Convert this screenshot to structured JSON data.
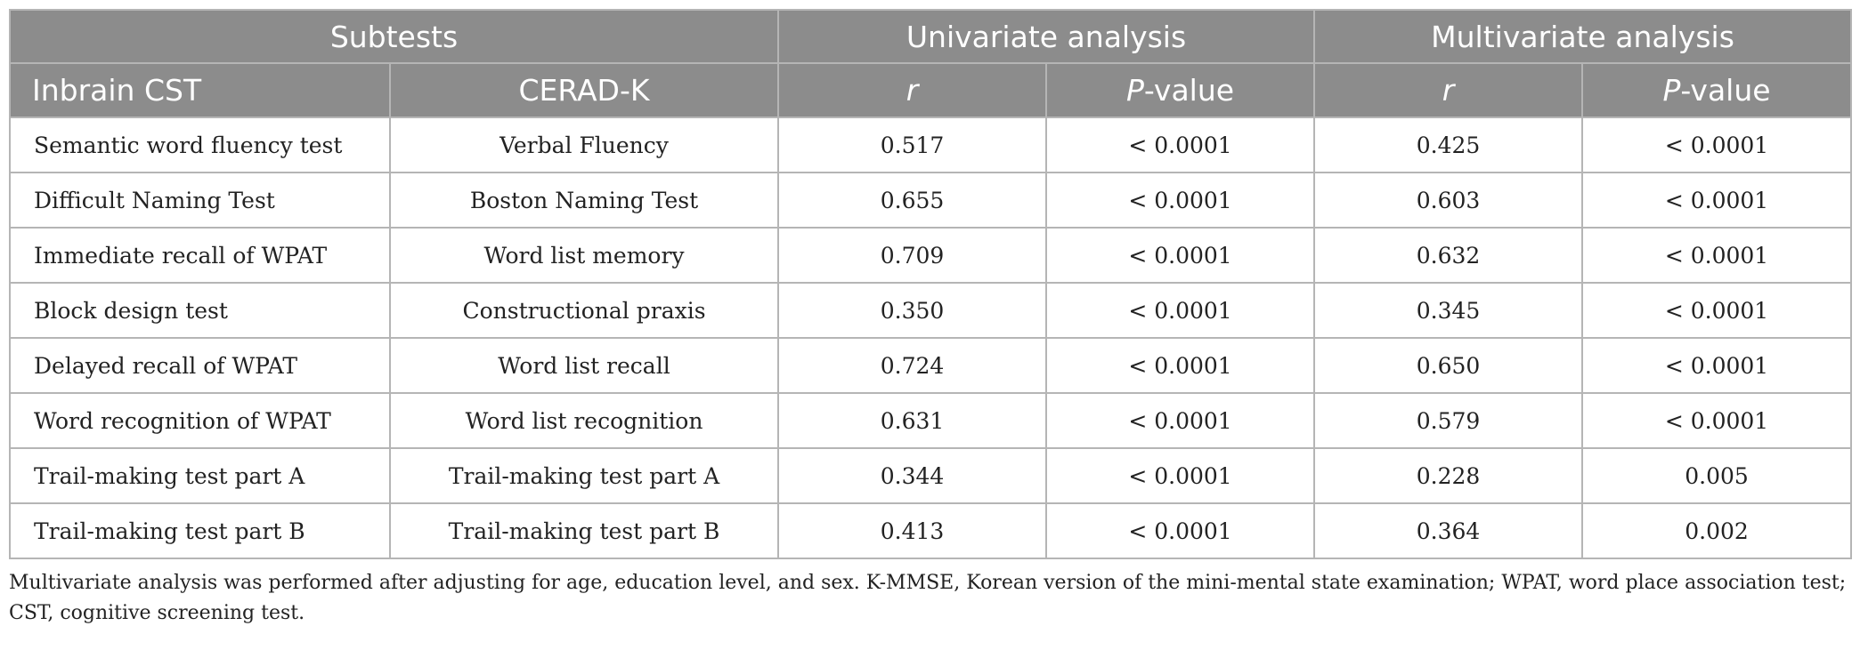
{
  "header": {
    "group_subtests": "Subtests",
    "group_univariate": "Univariate analysis",
    "group_multivariate": "Multivariate analysis",
    "col_inbrain": "Inbrain CST",
    "col_cerad": "CERAD-K",
    "col_r_uni": "r",
    "col_p_uni_italic": "P",
    "col_p_uni_rest": "-value",
    "col_r_multi": "r",
    "col_p_multi_italic": "P",
    "col_p_multi_rest": "-value"
  },
  "rows": [
    {
      "inbrain": "Semantic word fluency test",
      "cerad": "Verbal Fluency",
      "uni_r": "0.517",
      "uni_p": "< 0.0001",
      "multi_r": "0.425",
      "multi_p": "< 0.0001"
    },
    {
      "inbrain": "Difficult Naming Test",
      "cerad": "Boston Naming Test",
      "uni_r": "0.655",
      "uni_p": "< 0.0001",
      "multi_r": "0.603",
      "multi_p": "< 0.0001"
    },
    {
      "inbrain": "Immediate recall of WPAT",
      "cerad": "Word list memory",
      "uni_r": "0.709",
      "uni_p": "< 0.0001",
      "multi_r": "0.632",
      "multi_p": "< 0.0001"
    },
    {
      "inbrain": "Block design test",
      "cerad": "Constructional praxis",
      "uni_r": "0.350",
      "uni_p": "< 0.0001",
      "multi_r": "0.345",
      "multi_p": "< 0.0001"
    },
    {
      "inbrain": "Delayed recall of WPAT",
      "cerad": "Word list recall",
      "uni_r": "0.724",
      "uni_p": "< 0.0001",
      "multi_r": "0.650",
      "multi_p": "< 0.0001"
    },
    {
      "inbrain": "Word recognition of WPAT",
      "cerad": "Word list recognition",
      "uni_r": "0.631",
      "uni_p": "< 0.0001",
      "multi_r": "0.579",
      "multi_p": "< 0.0001"
    },
    {
      "inbrain": "Trail-making test part A",
      "cerad": "Trail-making test part A",
      "uni_r": "0.344",
      "uni_p": "< 0.0001",
      "multi_r": "0.228",
      "multi_p": "0.005"
    },
    {
      "inbrain": "Trail-making test part B",
      "cerad": "Trail-making test part B",
      "uni_r": "0.413",
      "uni_p": "< 0.0001",
      "multi_r": "0.364",
      "multi_p": "0.002"
    }
  ],
  "footnote": "Multivariate analysis was performed after adjusting for age, education level, and sex. K-MMSE, Korean version of the mini-mental state examination; WPAT, word place association test; CST, cognitive screening test."
}
